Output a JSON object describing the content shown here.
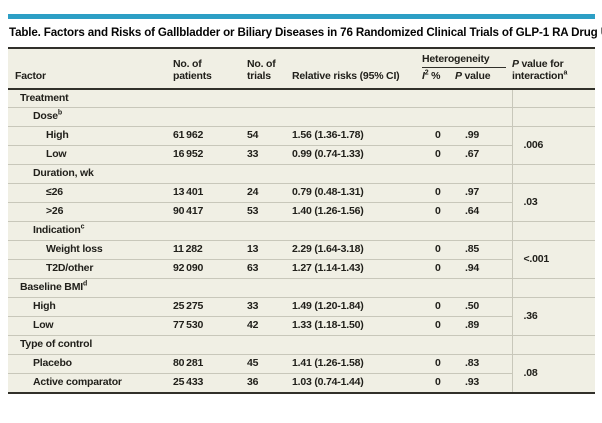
{
  "title": "Table. Factors and Risks of Gallbladder or Biliary Diseases in 76 Randomized Clinical Trials of GLP-1 RA Drug Use",
  "colors": {
    "accent_teal": "#2d9fc5",
    "table_background": "#f0efe4",
    "rule_dark": "#31302a",
    "rule_light": "#c8c7ba",
    "text": "#21201b"
  },
  "header": {
    "factor": "Factor",
    "patients_line1": "No. of",
    "patients_line2": "patients",
    "trials_line1": "No. of",
    "trials_line2": "trials",
    "relative_risks": "Relative risks (95% CI)",
    "heterogeneity": "Heterogeneity",
    "i2_italic": "I",
    "i2_sup": "2",
    "i2_suffix": " %",
    "p_italic": "P",
    "p_rest": " value",
    "interaction_italic": "P",
    "interaction_line1_rest": " value for",
    "interaction_line2": "interaction",
    "interaction_sup": "a"
  },
  "table": {
    "rows": [
      {
        "label": "Treatment",
        "type": "section"
      },
      {
        "label": "Dose",
        "sup": "b",
        "type": "section"
      },
      {
        "label": "High",
        "patients": "61 962",
        "trials": "54",
        "rr": "1.56 (1.36-1.78)",
        "i2": "0",
        "p": ".99",
        "interaction": ".006"
      },
      {
        "label": "Low",
        "patients": "16 952",
        "trials": "33",
        "rr": "0.99 (0.74-1.33)",
        "i2": "0",
        "p": ".67"
      },
      {
        "label": "Duration, wk",
        "type": "section"
      },
      {
        "label": "≤26",
        "patients": "13 401",
        "trials": "24",
        "rr": "0.79 (0.48-1.31)",
        "i2": "0",
        "p": ".97",
        "interaction": ".03"
      },
      {
        "label": ">26",
        "patients": "90 417",
        "trials": "53",
        "rr": "1.40 (1.26-1.56)",
        "i2": "0",
        "p": ".64"
      },
      {
        "label": "Indication",
        "sup": "c",
        "type": "section"
      },
      {
        "label": "Weight loss",
        "patients": "11 282",
        "trials": "13",
        "rr": "2.29 (1.64-3.18)",
        "i2": "0",
        "p": ".85",
        "interaction": "<.001"
      },
      {
        "label": "T2D/other",
        "patients": "92 090",
        "trials": "63",
        "rr": "1.27 (1.14-1.43)",
        "i2": "0",
        "p": ".94"
      },
      {
        "label": "Baseline BMI",
        "sup": "d",
        "type": "section"
      },
      {
        "label": "High",
        "patients": "25 275",
        "trials": "33",
        "rr": "1.49 (1.20-1.84)",
        "i2": "0",
        "p": ".50",
        "interaction": ".36"
      },
      {
        "label": "Low",
        "patients": "77 530",
        "trials": "42",
        "rr": "1.33 (1.18-1.50)",
        "i2": "0",
        "p": ".89"
      },
      {
        "label": "Type of control",
        "type": "section"
      },
      {
        "label": "Placebo",
        "patients": "80 281",
        "trials": "45",
        "rr": "1.41 (1.26-1.58)",
        "i2": "0",
        "p": ".83",
        "interaction": ".08"
      },
      {
        "label": "Active comparator",
        "patients": "25 433",
        "trials": "36",
        "rr": "1.03 (0.74-1.44)",
        "i2": "0",
        "p": ".93"
      }
    ]
  }
}
